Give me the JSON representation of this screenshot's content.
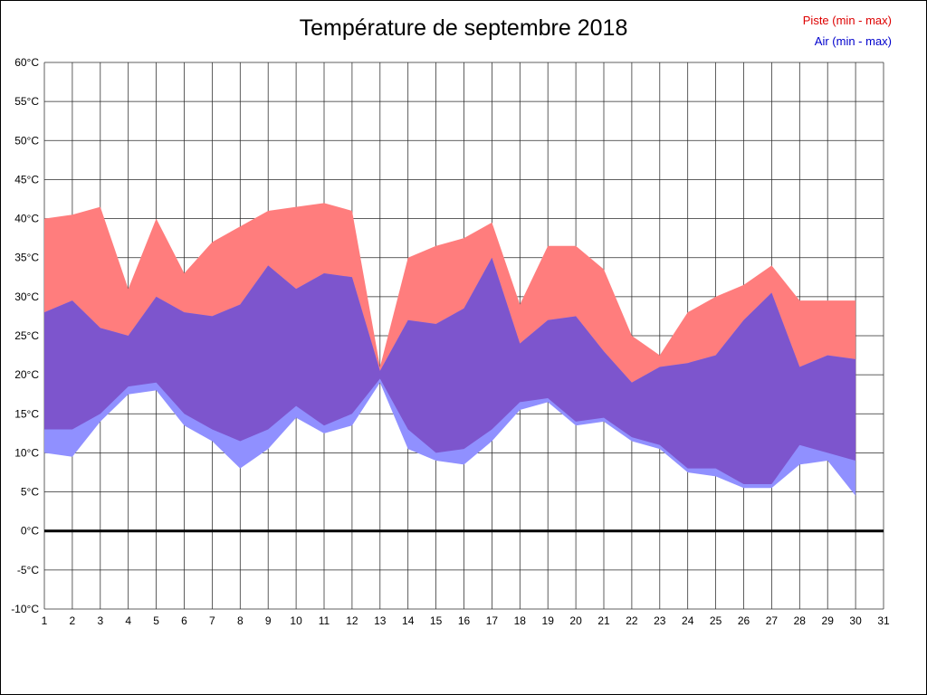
{
  "title": "Température de septembre 2018",
  "legend": {
    "piste_label": "Piste (min - max)",
    "air_label": "Air (min - max)",
    "piste_color": "#dd0000",
    "air_color": "#0000cc"
  },
  "chart_data": {
    "type": "area",
    "title": "Température de septembre 2018",
    "xlabel": "",
    "ylabel": "",
    "xlim": [
      1,
      31
    ],
    "ylim": [
      -10,
      60
    ],
    "grid": true,
    "legend_position": "top-right",
    "x": [
      1,
      2,
      3,
      4,
      5,
      6,
      7,
      8,
      9,
      10,
      11,
      12,
      13,
      14,
      15,
      16,
      17,
      18,
      19,
      20,
      21,
      22,
      23,
      24,
      25,
      26,
      27,
      28,
      29,
      30
    ],
    "x_ticks": [
      1,
      2,
      3,
      4,
      5,
      6,
      7,
      8,
      9,
      10,
      11,
      12,
      13,
      14,
      15,
      16,
      17,
      18,
      19,
      20,
      21,
      22,
      23,
      24,
      25,
      26,
      27,
      28,
      29,
      30,
      31
    ],
    "y_ticks": [
      {
        "value": 60,
        "label": "60°C"
      },
      {
        "value": 55,
        "label": "55°C"
      },
      {
        "value": 50,
        "label": "50°C"
      },
      {
        "value": 45,
        "label": "45°C"
      },
      {
        "value": 40,
        "label": "40°C"
      },
      {
        "value": 35,
        "label": "35°C"
      },
      {
        "value": 30,
        "label": "30°C"
      },
      {
        "value": 25,
        "label": "25°C"
      },
      {
        "value": 20,
        "label": "20°C"
      },
      {
        "value": 15,
        "label": "15°C"
      },
      {
        "value": 10,
        "label": "10°C"
      },
      {
        "value": 5,
        "label": "5°C"
      },
      {
        "value": 0,
        "label": "0°C"
      },
      {
        "value": -5,
        "label": "-5°C"
      },
      {
        "value": -10,
        "label": "-10°C"
      }
    ],
    "series": [
      {
        "name": "Piste max",
        "key": "piste_max",
        "values": [
          40,
          40.5,
          41.5,
          31,
          40,
          33,
          37,
          39,
          41,
          41.5,
          42,
          41,
          21,
          35,
          36.5,
          37.5,
          39.5,
          29,
          36.5,
          36.5,
          33.5,
          25,
          22.5,
          28,
          30,
          31.5,
          34,
          29.5,
          29.5,
          29.5
        ]
      },
      {
        "name": "Piste min",
        "key": "piste_min",
        "values": [
          13,
          13,
          15,
          18.5,
          19,
          15,
          13,
          11.5,
          13,
          16,
          13.5,
          15,
          19.5,
          13,
          10,
          10.5,
          13,
          16.5,
          17,
          14,
          14.5,
          12,
          11,
          8,
          8,
          6,
          6,
          11,
          10,
          9
        ]
      },
      {
        "name": "Air max",
        "key": "air_max",
        "values": [
          28,
          29.5,
          26,
          25,
          30,
          28,
          27.5,
          29,
          34,
          31,
          33,
          32.5,
          20.5,
          27,
          26.5,
          28.5,
          35,
          24,
          27,
          27.5,
          23,
          19,
          21,
          21.5,
          22.5,
          27,
          30.5,
          21,
          22.5,
          22
        ]
      },
      {
        "name": "Air min",
        "key": "air_min",
        "values": [
          10,
          9.5,
          14,
          17.5,
          18,
          13.5,
          11.5,
          8,
          10.5,
          14.5,
          12.5,
          13.5,
          19,
          10.5,
          9,
          8.5,
          11.5,
          15.5,
          16.5,
          13.5,
          14,
          11.5,
          10.5,
          7.5,
          7,
          5.5,
          5.5,
          8.5,
          9,
          4.5
        ]
      }
    ],
    "colors": {
      "piste_band": "#ff7d7d",
      "air_band": "#9090ff",
      "overlap_band": "#7d55cd",
      "grid": "#2a2a2a",
      "zero_line": "#000000"
    },
    "zero_line_value": 0
  }
}
